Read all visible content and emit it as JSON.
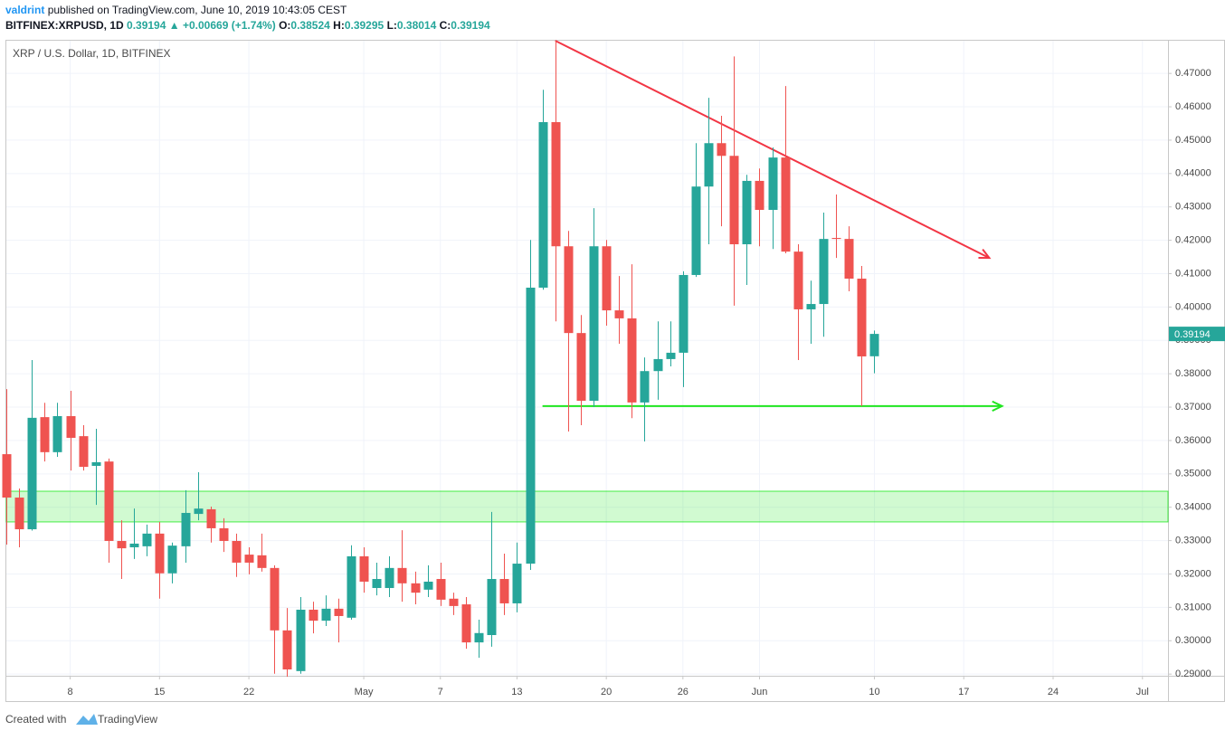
{
  "header": {
    "author": "valdrint",
    "published": "published on TradingView.com, June 10, 2019 10:43:05 CEST",
    "symbol": "BITFINEX:XRPUSD, 1D",
    "last": "0.39194",
    "change": "▲ +0.00669 (+1.74%)",
    "o": "O:",
    "o_val": "0.38524",
    "h": "H:",
    "h_val": "0.39295",
    "l": "L:",
    "l_val": "0.38014",
    "c": "C:",
    "c_val": "0.39194"
  },
  "footer": {
    "created": "Created with",
    "brand": "TradingView"
  },
  "chart_data": {
    "type": "candlestick",
    "legend": "XRP / U.S. Dollar, 1D, BITFINEX",
    "up_color": "#26a69a",
    "down_color": "#ef5350",
    "grid": true,
    "price_label": "0.39194",
    "x": [
      "2019-04-03",
      "2019-04-04",
      "2019-04-05",
      "2019-04-06",
      "2019-04-07",
      "2019-04-08",
      "2019-04-09",
      "2019-04-10",
      "2019-04-11",
      "2019-04-12",
      "2019-04-13",
      "2019-04-14",
      "2019-04-15",
      "2019-04-16",
      "2019-04-17",
      "2019-04-18",
      "2019-04-19",
      "2019-04-20",
      "2019-04-21",
      "2019-04-22",
      "2019-04-23",
      "2019-04-24",
      "2019-04-25",
      "2019-04-26",
      "2019-04-27",
      "2019-04-28",
      "2019-04-29",
      "2019-04-30",
      "2019-05-01",
      "2019-05-02",
      "2019-05-03",
      "2019-05-04",
      "2019-05-05",
      "2019-05-06",
      "2019-05-07",
      "2019-05-08",
      "2019-05-09",
      "2019-05-10",
      "2019-05-11",
      "2019-05-12",
      "2019-05-13",
      "2019-05-14",
      "2019-05-15",
      "2019-05-16",
      "2019-05-17",
      "2019-05-18",
      "2019-05-19",
      "2019-05-20",
      "2019-05-21",
      "2019-05-22",
      "2019-05-23",
      "2019-05-24",
      "2019-05-25",
      "2019-05-26",
      "2019-05-27",
      "2019-05-28",
      "2019-05-29",
      "2019-05-30",
      "2019-05-31",
      "2019-06-01",
      "2019-06-02",
      "2019-06-03",
      "2019-06-04",
      "2019-06-05",
      "2019-06-06",
      "2019-06-07",
      "2019-06-08",
      "2019-06-09",
      "2019-06-10"
    ],
    "open": [
      0.3559,
      0.3429,
      0.3334,
      0.367,
      0.3565,
      0.3673,
      0.3613,
      0.3524,
      0.3537,
      0.3299,
      0.328,
      0.3283,
      0.3321,
      0.3202,
      0.3283,
      0.338,
      0.3394,
      0.3337,
      0.3299,
      0.3258,
      0.3256,
      0.3218,
      0.3031,
      0.2909,
      0.3093,
      0.306,
      0.3096,
      0.3069,
      0.3253,
      0.3158,
      0.3158,
      0.3218,
      0.3172,
      0.3153,
      0.3185,
      0.3126,
      0.3109,
      0.2995,
      0.3017,
      0.3185,
      0.3112,
      0.3231,
      0.4058,
      0.4554,
      0.4182,
      0.3922,
      0.3719,
      0.4182,
      0.399,
      0.3966,
      0.3714,
      0.3808,
      0.3844,
      0.3863,
      0.4096,
      0.4361,
      0.4491,
      0.4453,
      0.4188,
      0.4378,
      0.4291,
      0.4448,
      0.4166,
      0.3993,
      0.4009,
      0.4207,
      0.4204,
      0.4085,
      0.38524
    ],
    "high": [
      0.3754,
      0.3456,
      0.3841,
      0.3713,
      0.3713,
      0.3749,
      0.3646,
      0.3635,
      0.3546,
      0.3361,
      0.3396,
      0.3348,
      0.3356,
      0.3294,
      0.3451,
      0.3505,
      0.3402,
      0.3367,
      0.3321,
      0.328,
      0.3321,
      0.3226,
      0.3098,
      0.3131,
      0.3117,
      0.3136,
      0.3126,
      0.3286,
      0.328,
      0.3234,
      0.3253,
      0.3331,
      0.3207,
      0.3226,
      0.3234,
      0.3144,
      0.3131,
      0.3063,
      0.3386,
      0.3261,
      0.3294,
      0.4201,
      0.4651,
      0.4798,
      0.4228,
      0.3976,
      0.4296,
      0.4201,
      0.4093,
      0.4128,
      0.3849,
      0.3957,
      0.3957,
      0.4107,
      0.4491,
      0.4627,
      0.4573,
      0.4751,
      0.4396,
      0.4415,
      0.4478,
      0.4662,
      0.4188,
      0.4079,
      0.4283,
      0.4337,
      0.4242,
      0.4123,
      0.39295
    ],
    "low": [
      0.3288,
      0.328,
      0.333,
      0.3537,
      0.3551,
      0.351,
      0.351,
      0.3407,
      0.3234,
      0.3185,
      0.3245,
      0.3253,
      0.3126,
      0.3172,
      0.3234,
      0.3361,
      0.3294,
      0.3266,
      0.3191,
      0.3199,
      0.3207,
      0.2901,
      0.2892,
      0.2901,
      0.3022,
      0.3044,
      0.2995,
      0.3063,
      0.3144,
      0.3136,
      0.3131,
      0.3117,
      0.3109,
      0.3131,
      0.3104,
      0.3077,
      0.2976,
      0.2949,
      0.2982,
      0.3077,
      0.3085,
      0.3212,
      0.4052,
      0.3957,
      0.3627,
      0.3646,
      0.37,
      0.3944,
      0.389,
      0.3667,
      0.3597,
      0.3722,
      0.3822,
      0.376,
      0.409,
      0.4188,
      0.4242,
      0.4004,
      0.4066,
      0.4182,
      0.4174,
      0.4161,
      0.3841,
      0.389,
      0.3911,
      0.4147,
      0.4047,
      0.3703,
      0.38014
    ],
    "close": [
      0.3429,
      0.3334,
      0.3668,
      0.3565,
      0.3673,
      0.3608,
      0.3521,
      0.3535,
      0.3299,
      0.3277,
      0.3291,
      0.3321,
      0.3202,
      0.3285,
      0.3383,
      0.3396,
      0.3337,
      0.3299,
      0.3234,
      0.3234,
      0.3218,
      0.3031,
      0.2914,
      0.3093,
      0.306,
      0.3096,
      0.3074,
      0.3253,
      0.3177,
      0.3185,
      0.3218,
      0.3172,
      0.3144,
      0.3177,
      0.3123,
      0.3104,
      0.2995,
      0.3023,
      0.3185,
      0.3112,
      0.3231,
      0.4058,
      0.4554,
      0.4182,
      0.3922,
      0.3719,
      0.4182,
      0.399,
      0.3966,
      0.3714,
      0.3808,
      0.3844,
      0.3863,
      0.4096,
      0.4361,
      0.4491,
      0.4453,
      0.4188,
      0.4378,
      0.4291,
      0.4448,
      0.4166,
      0.3993,
      0.4009,
      0.4204,
      0.4204,
      0.4085,
      0.3852,
      0.39194
    ],
    "xlim": [
      "2019-04-03",
      "2019-07-03"
    ],
    "xticks": [
      {
        "value": "2019-04-08",
        "label": "8"
      },
      {
        "value": "2019-04-15",
        "label": "15"
      },
      {
        "value": "2019-04-22",
        "label": "22"
      },
      {
        "value": "2019-05-01",
        "label": "May"
      },
      {
        "value": "2019-05-07",
        "label": "7"
      },
      {
        "value": "2019-05-13",
        "label": "13"
      },
      {
        "value": "2019-05-20",
        "label": "20"
      },
      {
        "value": "2019-05-26",
        "label": "26"
      },
      {
        "value": "2019-06-01",
        "label": "Jun"
      },
      {
        "value": "2019-06-10",
        "label": "10"
      },
      {
        "value": "2019-06-17",
        "label": "17"
      },
      {
        "value": "2019-06-24",
        "label": "24"
      },
      {
        "value": "2019-07-01",
        "label": "Jul"
      }
    ],
    "ylim": [
      0.2895,
      0.4798
    ],
    "yticks": [
      {
        "value": 0.29,
        "label": "0.29000"
      },
      {
        "value": 0.3,
        "label": "0.30000"
      },
      {
        "value": 0.31,
        "label": "0.31000"
      },
      {
        "value": 0.32,
        "label": "0.32000"
      },
      {
        "value": 0.33,
        "label": "0.33000"
      },
      {
        "value": 0.34,
        "label": "0.34000"
      },
      {
        "value": 0.35,
        "label": "0.35000"
      },
      {
        "value": 0.36,
        "label": "0.36000"
      },
      {
        "value": 0.37,
        "label": "0.37000"
      },
      {
        "value": 0.38,
        "label": "0.38000"
      },
      {
        "value": 0.39,
        "label": "0.39000"
      },
      {
        "value": 0.4,
        "label": "0.40000"
      },
      {
        "value": 0.41,
        "label": "0.41000"
      },
      {
        "value": 0.42,
        "label": "0.42000"
      },
      {
        "value": 0.43,
        "label": "0.43000"
      },
      {
        "value": 0.44,
        "label": "0.44000"
      },
      {
        "value": 0.45,
        "label": "0.45000"
      },
      {
        "value": 0.46,
        "label": "0.46000"
      },
      {
        "value": 0.47,
        "label": "0.47000"
      }
    ],
    "drawings": [
      {
        "kind": "zone",
        "y": [
          0.3356,
          0.3448
        ],
        "color": "#00e600"
      },
      {
        "kind": "arrow",
        "x": [
          "2019-05-16",
          "2019-06-19"
        ],
        "y": [
          0.4798,
          0.4147
        ],
        "color": "#f23645"
      },
      {
        "kind": "arrow",
        "x": [
          "2019-05-15",
          "2019-06-20"
        ],
        "y": [
          0.3703,
          0.3703
        ],
        "color": "#21e621"
      }
    ]
  }
}
